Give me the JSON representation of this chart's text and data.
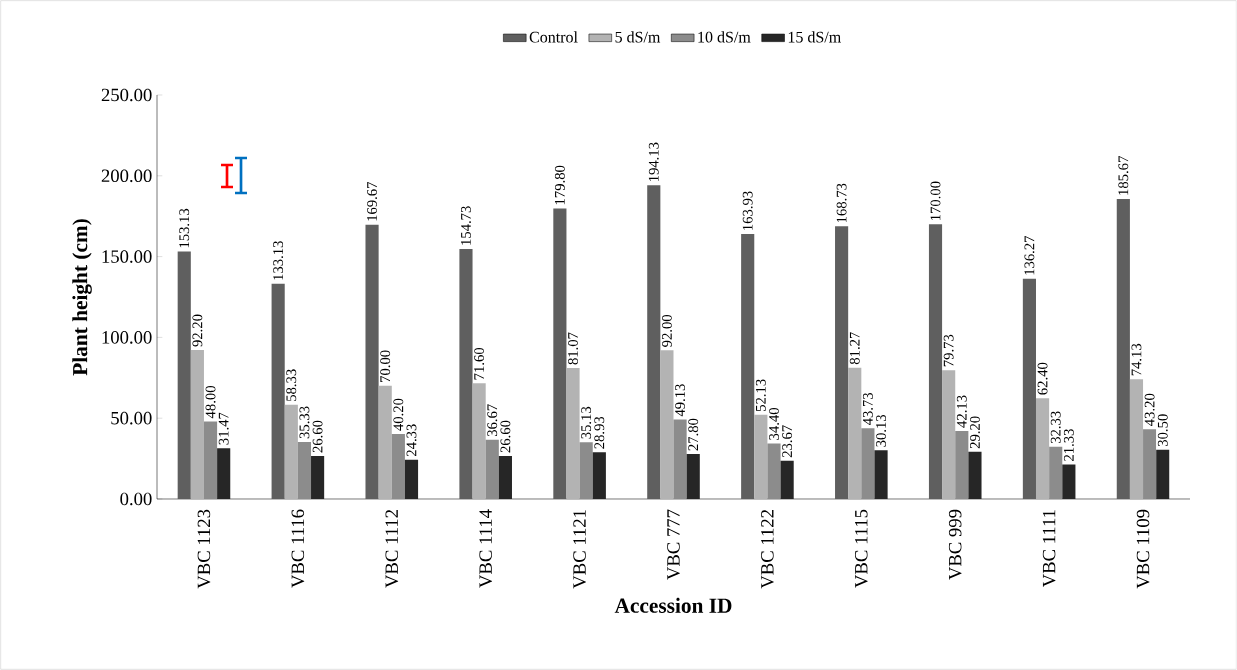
{
  "chart_data": {
    "type": "bar",
    "xlabel": "Accession ID",
    "ylabel": "Plant height (cm)",
    "categories": [
      "VBC 1123",
      "VBC 1116",
      "VBC 1112",
      "VBC 1114",
      "VBC 1121",
      "VBC 777",
      "VBC 1122",
      "VBC 1115",
      "VBC 999",
      "VBC 1111",
      "VBC 1109"
    ],
    "series": [
      {
        "name": "Control",
        "color": "#5f5f5f",
        "values": [
          153.13,
          133.13,
          169.67,
          154.73,
          179.8,
          194.13,
          163.93,
          168.73,
          170.0,
          136.27,
          185.67
        ],
        "value_labels": [
          "153.13",
          "133.13",
          "169.67",
          "154.73",
          "179.80",
          "194.13",
          "163.93",
          "168.73",
          "170.00",
          "136.27",
          "185.67"
        ]
      },
      {
        "name": "5 dS/m",
        "color": "#b3b3b3",
        "values": [
          92.2,
          58.33,
          70.0,
          71.6,
          81.07,
          92.0,
          52.13,
          81.27,
          79.73,
          62.4,
          74.13
        ],
        "value_labels": [
          "92.20",
          "58.33",
          "70.00",
          "71.60",
          "81.07",
          "92.00",
          "52.13",
          "81.27",
          "79.73",
          "62.40",
          "74.13"
        ]
      },
      {
        "name": "10 dS/m",
        "color": "#8c8c8c",
        "values": [
          48.0,
          35.33,
          40.2,
          36.67,
          35.13,
          49.13,
          34.4,
          43.73,
          42.13,
          32.33,
          43.2
        ],
        "value_labels": [
          "48.00",
          "35.33",
          "40.20",
          "36.67",
          "35.13",
          "49.13",
          "34.40",
          "43.73",
          "42.13",
          "32.33",
          "43.20"
        ]
      },
      {
        "name": "15 dS/m",
        "color": "#262626",
        "values": [
          31.47,
          26.6,
          24.33,
          26.6,
          28.93,
          27.8,
          23.67,
          30.13,
          29.2,
          21.33,
          30.5
        ],
        "value_labels": [
          "31.47",
          "26.60",
          "24.33",
          "26.60",
          "28.93",
          "27.80",
          "23.67",
          "30.13",
          "29.20",
          "21.33",
          "30.50"
        ]
      }
    ],
    "ylim": [
      0,
      250
    ],
    "yticks": [
      {
        "value": 0,
        "label": "0.00"
      },
      {
        "value": 50,
        "label": "50.00"
      },
      {
        "value": 100,
        "label": "100.00"
      },
      {
        "value": 150,
        "label": "150.00"
      },
      {
        "value": 200,
        "label": "200.00"
      },
      {
        "value": 250,
        "label": "250.00"
      }
    ],
    "grid": false,
    "legend": "top"
  }
}
